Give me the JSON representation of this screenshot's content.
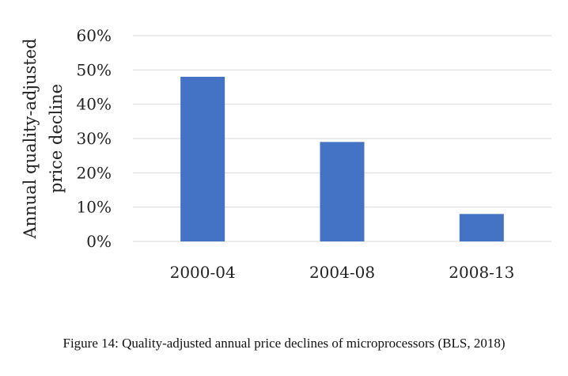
{
  "chart_data": {
    "type": "bar",
    "categories": [
      "2000-04",
      "2004-08",
      "2008-13"
    ],
    "values": [
      48,
      29,
      8
    ],
    "ylabel_lines": [
      "Annual quality-adjusted",
      "price decline"
    ],
    "xlabel": "",
    "ylim": [
      0,
      60
    ],
    "yticks": [
      0,
      10,
      20,
      30,
      40,
      50,
      60
    ],
    "ytick_labels": [
      "0%",
      "10%",
      "20%",
      "30%",
      "40%",
      "50%",
      "60%"
    ],
    "grid": true,
    "bar_color": "#4472C4",
    "grid_color": "#d9d9d9"
  },
  "caption": "Figure 14: Quality-adjusted annual price declines of microprocessors (BLS, 2018)"
}
